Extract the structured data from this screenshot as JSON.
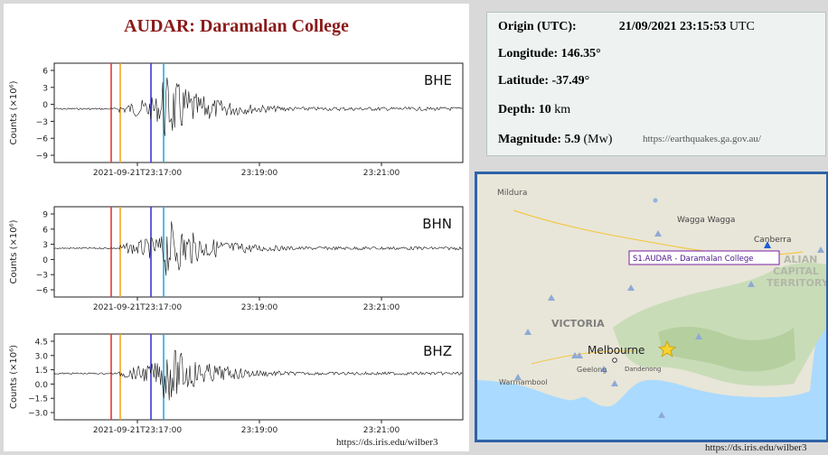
{
  "title": "AUDAR: Daramalan College",
  "ylabel": "Counts (×10⁶)",
  "x_ticks": [
    "2021-09-21T23:17:00",
    "23:19:00",
    "23:21:00"
  ],
  "channels": [
    {
      "name": "BHE",
      "yticks": [
        "6",
        "3",
        "0",
        "−3",
        "−6",
        "−9"
      ]
    },
    {
      "name": "BHN",
      "yticks": [
        "9",
        "6",
        "3",
        "0",
        "−3",
        "−6"
      ]
    },
    {
      "name": "BHZ",
      "yticks": [
        "4.5",
        "3.0",
        "1.5",
        "0.0",
        "−1.5",
        "−3.0"
      ]
    }
  ],
  "phase_line_colors": [
    "#e03a3a",
    "#f5a623",
    "#3a3adb",
    "#2ba8e0"
  ],
  "info": {
    "origin_label": "Origin (UTC):",
    "origin_value": "21/09/2021 23:15:53",
    "origin_unit": "UTC",
    "longitude_label": "Longitude:",
    "longitude_value": "146.35°",
    "latitude_label": "Latitude:",
    "latitude_value": "-37.49°",
    "depth_label": "Depth:",
    "depth_value": "10",
    "depth_unit": "km",
    "magnitude_label": "Magnitude:",
    "magnitude_value": "5.9",
    "magnitude_unit": "(Mw)",
    "source_url": "https://earthquakes.ga.gov.au/"
  },
  "map": {
    "labels": {
      "mildura": "Mildura",
      "wagga": "Wagga Wagga",
      "canberra": "Canberra",
      "act_1": "ALIAN",
      "act_2": "CAPITAL",
      "act_3": "TERRITORY",
      "victoria": "VICTORIA",
      "melbourne": "Melbourne",
      "geelong": "Geelong",
      "dandenong": "Dandenong",
      "warrnambool": "Warrnambool"
    },
    "station_tooltip": "S1.AUDAR - Daramalan College"
  },
  "wilber_url": "https://ds.iris.edu/wilber3",
  "colors": {
    "title": "#8b1a1a",
    "map_border": "#2e62a7",
    "tooltip_border": "#7b1fa2"
  }
}
